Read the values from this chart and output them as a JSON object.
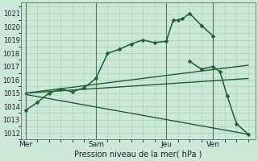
{
  "xlabel": "Pression niveau de la mer( hPa )",
  "bg_color": "#cce8d8",
  "grid_color": "#aaccb8",
  "line_color": "#1a6030",
  "vline_color": "#557766",
  "ylim": [
    1011.5,
    1021.8
  ],
  "xlim": [
    -0.2,
    9.8
  ],
  "yticks": [
    1012,
    1013,
    1014,
    1015,
    1016,
    1017,
    1018,
    1019,
    1020,
    1021
  ],
  "day_labels": [
    "Mer",
    "Sam",
    "Jeu",
    "Ven"
  ],
  "day_positions": [
    0.0,
    3.0,
    6.0,
    8.0
  ],
  "series": [
    {
      "x": [
        0,
        0.5,
        1.0,
        1.5,
        2.0,
        2.5,
        3.0,
        3.5,
        4.0,
        4.5,
        5.0,
        5.5,
        6.0,
        6.3,
        6.5,
        6.7,
        7.0,
        7.5,
        8.0
      ],
      "y": [
        1013.7,
        1014.3,
        1015.0,
        1015.3,
        1015.1,
        1015.4,
        1016.1,
        1018.0,
        1018.3,
        1018.7,
        1019.0,
        1018.8,
        1018.9,
        1020.5,
        1020.5,
        1020.6,
        1021.0,
        1020.1,
        1019.3
      ],
      "marker": "D",
      "ms": 2.5,
      "lw": 1.1,
      "zorder": 5
    },
    {
      "x": [
        7.0,
        7.5,
        8.0,
        8.3,
        8.6,
        9.0,
        9.5
      ],
      "y": [
        1017.4,
        1016.8,
        1017.0,
        1016.6,
        1014.8,
        1012.7,
        1011.9
      ],
      "marker": "D",
      "ms": 2.5,
      "lw": 1.1,
      "zorder": 5
    },
    {
      "x": [
        0,
        9.5
      ],
      "y": [
        1015.0,
        1017.1
      ],
      "marker": null,
      "ms": 0,
      "lw": 1.0,
      "zorder": 3
    },
    {
      "x": [
        0,
        9.5
      ],
      "y": [
        1015.0,
        1016.1
      ],
      "marker": null,
      "ms": 0,
      "lw": 1.0,
      "zorder": 3
    },
    {
      "x": [
        0,
        9.5
      ],
      "y": [
        1014.9,
        1011.9
      ],
      "marker": null,
      "ms": 0,
      "lw": 1.0,
      "zorder": 3
    }
  ]
}
